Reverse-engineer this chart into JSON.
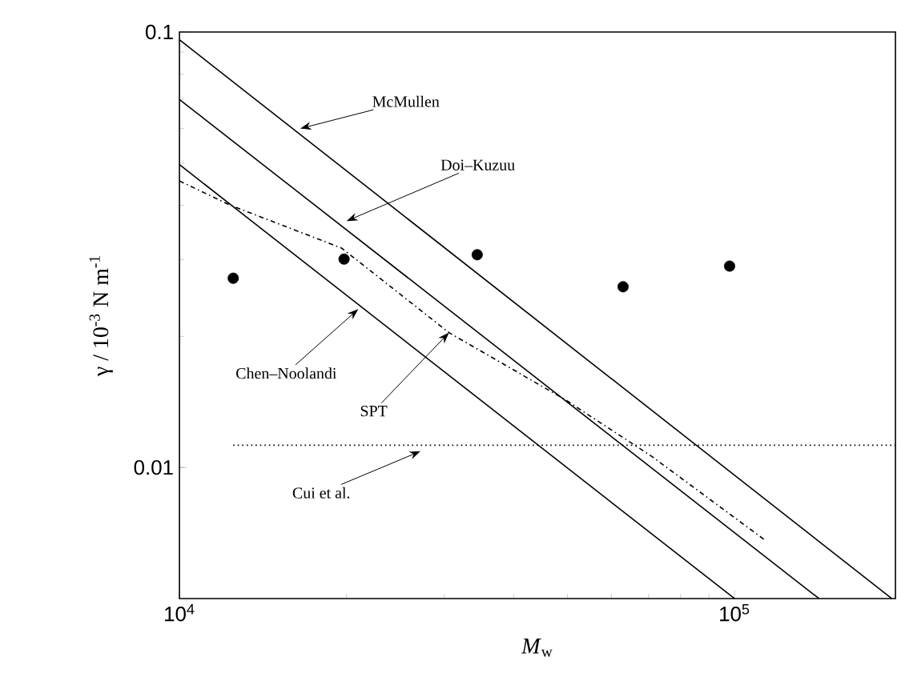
{
  "chart_data": {
    "type": "line",
    "xlabel": "*M*$_{w}$",
    "ylabel": "γ / 10$^{-3}$ N m$^{-1}$",
    "xlim": [
      10000,
      195000
    ],
    "ylim": [
      0.005,
      0.1
    ],
    "xticks": [
      {
        "value": 10000,
        "label": "10$^{4}$"
      },
      {
        "value": 100000,
        "label": "10$^{5}$"
      }
    ],
    "yticks": [
      0.01,
      0.1
    ],
    "log": "xy",
    "grid": false,
    "series": [
      {
        "color": "#000000",
        "line_style": "solid",
        "marker": "none",
        "x": [
          10000,
          192000
        ],
        "values": [
          0.096,
          0.005
        ]
      },
      {
        "color": "#000000",
        "line_style": "solid",
        "marker": "none",
        "x": [
          10000,
          142000
        ],
        "values": [
          0.07,
          0.005
        ]
      },
      {
        "color": "#000000",
        "line_style": "solid",
        "marker": "none",
        "x": [
          10000,
          100000
        ],
        "values": [
          0.0496,
          0.005
        ]
      },
      {
        "color": "#000000",
        "line_style": "dashdot",
        "marker": "none",
        "x": [
          10000,
          12300,
          19600,
          30600,
          49600,
          71000,
          113000
        ],
        "values": [
          0.0455,
          0.0401,
          0.0319,
          0.0204,
          0.0143,
          0.0106,
          0.00684
        ]
      },
      {
        "color": "#000000",
        "line_style": "dotted",
        "marker": "none",
        "x": [
          12500,
          195000
        ],
        "values": [
          0.01125,
          0.01125
        ]
      },
      {
        "type": "scatter",
        "color": "#000000",
        "marker": "circle",
        "x": [
          12500,
          19800,
          34400,
          63000,
          98000
        ],
        "values": [
          0.0272,
          0.0301,
          0.0308,
          0.026,
          0.029
        ]
      }
    ],
    "annotations": [
      {
        "text": "McMullen",
        "x": 16500,
        "y": 0.06
      },
      {
        "text": "Doi–Kuzuu",
        "x": 20000,
        "y": 0.0368
      },
      {
        "text": "Chen–Noolandi",
        "x": 21000,
        "y": 0.0231
      },
      {
        "text": "SPT",
        "x": 30600,
        "y": 0.0204
      },
      {
        "text": "Cui et al.",
        "x": 27200,
        "y": 0.0109
      }
    ]
  }
}
